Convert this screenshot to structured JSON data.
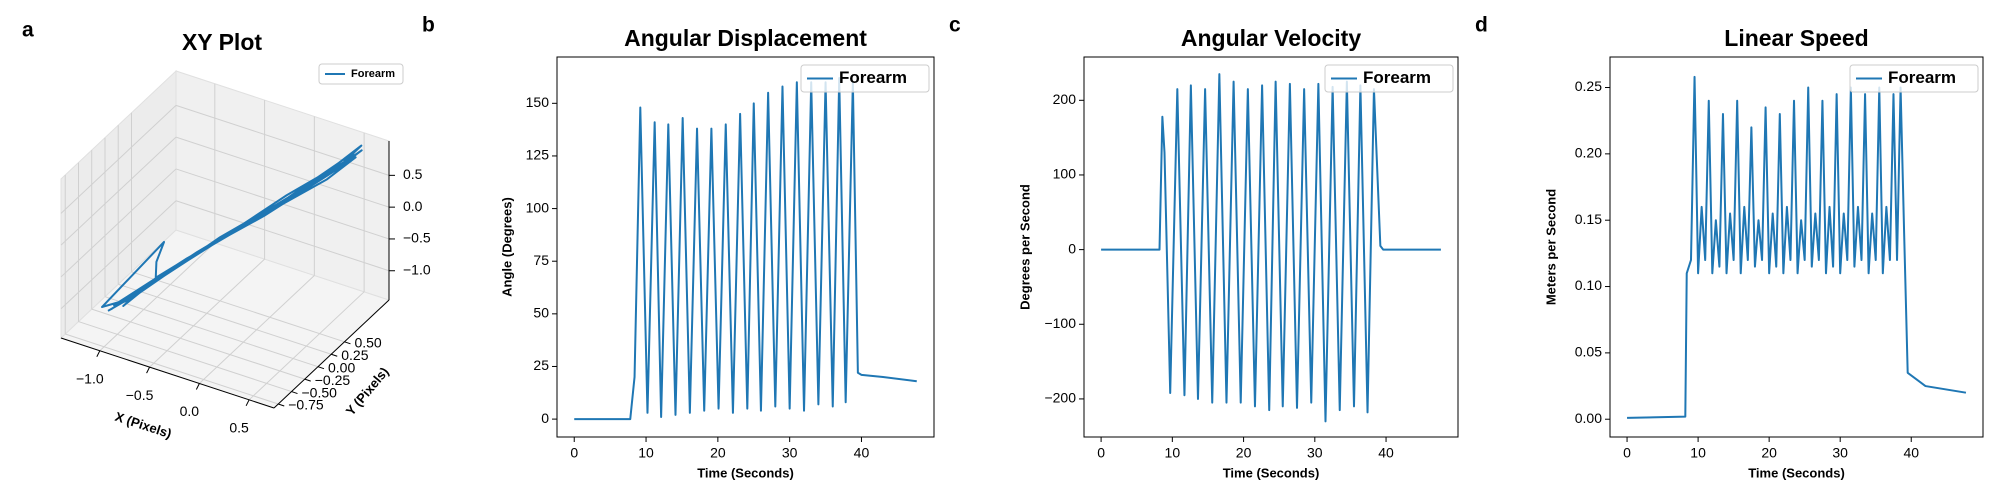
{
  "chart_data": [
    {
      "type": "line3d",
      "panel_label": "a",
      "title": "XY Plot",
      "xlabel": "X (Pixels)",
      "ylabel": "Y (Pixels)",
      "xlim": [
        -1.39,
        0.75
      ],
      "ylim": [
        -0.83,
        1.34
      ],
      "zlim": [
        -1.46,
        1.04
      ],
      "xticks": [
        {
          "value": -1.0,
          "label": "−1.0"
        },
        {
          "value": -0.5,
          "label": "−0.5"
        },
        {
          "value": 0,
          "label": "0.0"
        },
        0.5
      ],
      "yticks": [
        {
          "value": -0.75,
          "label": "−0.75"
        },
        {
          "value": -0.5,
          "label": "−0.50"
        },
        {
          "value": -0.25,
          "label": "−0.25"
        },
        {
          "value": 0,
          "label": "0.00"
        },
        0.25,
        {
          "value": 0.5,
          "label": "0.50"
        }
      ],
      "zticks": [
        {
          "value": -1.0,
          "label": "−1.0"
        },
        {
          "value": -0.5,
          "label": "−0.5"
        },
        {
          "value": 0,
          "label": "0.0"
        },
        0.5
      ],
      "grid": true,
      "legend": "upper right",
      "series": [
        {
          "name": "Forearm",
          "color": "#1f77b4",
          "x": [
            -1.2,
            -1.02,
            -1.15,
            -0.66,
            -0.12,
            0.37,
            0.55,
            0.3,
            -0.3,
            -0.86,
            -1.1,
            -0.95,
            -0.5,
            0.02,
            0.48,
            0.5,
            0.0,
            -0.42,
            -1.05,
            -1.25,
            -0.85,
            -0.9,
            -0.88,
            -0.22,
            0.2,
            0.52,
            0.4,
            -0.15,
            -0.7,
            -1.08,
            -1.0,
            -0.32,
            0.32,
            0.5,
            0.1,
            -0.6,
            -1.18
          ],
          "y": [
            -0.3,
            -0.12,
            -0.28,
            0.18,
            0.62,
            1.02,
            1.2,
            0.95,
            0.42,
            0.02,
            -0.2,
            -0.05,
            0.32,
            0.78,
            1.12,
            1.15,
            0.72,
            0.35,
            -0.15,
            -0.32,
            0.1,
            0.05,
            0.0,
            0.55,
            0.9,
            1.25,
            1.05,
            0.6,
            0.12,
            -0.2,
            -0.1,
            0.45,
            0.98,
            1.18,
            0.82,
            0.25,
            -0.28
          ],
          "z": [
            -1.35,
            -1.15,
            -1.25,
            -0.62,
            -0.02,
            0.62,
            0.9,
            0.55,
            -0.2,
            -0.88,
            -1.3,
            -1.05,
            -0.45,
            0.25,
            0.8,
            0.88,
            0.18,
            -0.3,
            -1.2,
            -1.3,
            -0.4,
            -0.7,
            -0.9,
            -0.08,
            0.42,
            0.92,
            0.68,
            0.0,
            -0.7,
            -1.22,
            -1.1,
            -0.22,
            0.5,
            0.78,
            0.3,
            -0.55,
            -1.33
          ]
        }
      ]
    },
    {
      "type": "line",
      "panel_label": "b",
      "title": "Angular Displacement",
      "xlabel": "Time (Seconds)",
      "ylabel": "Angle (Degrees)",
      "xlim": [
        -2.4,
        50.1
      ],
      "ylim": [
        -8.5,
        172
      ],
      "xticks": [
        0,
        10,
        20,
        30,
        40
      ],
      "yticks": [
        0,
        25,
        50,
        75,
        100,
        125,
        150
      ],
      "grid": false,
      "legend": "upper right",
      "x": [
        0,
        7.8,
        8.4,
        9.2,
        10.2,
        11.2,
        12.1,
        13.1,
        14.1,
        15.1,
        16.1,
        17.1,
        18.1,
        19.1,
        20.1,
        21.1,
        22.1,
        23.1,
        24.1,
        25,
        26,
        27,
        28,
        29,
        30,
        31,
        32,
        33,
        34,
        35,
        36,
        36.9,
        37.8,
        38.8,
        39.5,
        40,
        43,
        47.7
      ],
      "series": [
        {
          "name": "Forearm",
          "color": "#1f77b4",
          "values": [
            0,
            0,
            20,
            148,
            3,
            141,
            1,
            140,
            2,
            143,
            3,
            138,
            4,
            138,
            5,
            140,
            3,
            145,
            5,
            150,
            4,
            155,
            6,
            158,
            5,
            160,
            4,
            160,
            7,
            160,
            6,
            162,
            8,
            160,
            22,
            21,
            20,
            18
          ]
        }
      ]
    },
    {
      "type": "line",
      "panel_label": "c",
      "title": "Angular Velocity",
      "xlabel": "Time (Seconds)",
      "ylabel": "Degrees per Second",
      "xlim": [
        -2.4,
        50.1
      ],
      "ylim": [
        -251,
        258
      ],
      "xticks": [
        0,
        10,
        20,
        30,
        40
      ],
      "yticks": [
        {
          "value": -200,
          "label": "−200"
        },
        {
          "value": -100,
          "label": "−100"
        },
        0,
        100,
        200
      ],
      "grid": false,
      "legend": "upper right",
      "x": [
        0,
        8.2,
        8.6,
        8.9,
        9.7,
        10.7,
        11.7,
        12.6,
        13.6,
        14.6,
        15.6,
        16.6,
        17.6,
        18.6,
        19.6,
        20.6,
        21.6,
        22.6,
        23.6,
        24.5,
        25.5,
        26.5,
        27.5,
        28.5,
        29.5,
        30.5,
        31.5,
        32.5,
        33.5,
        34.5,
        35.5,
        36.4,
        37.4,
        38.3,
        39.2,
        39.6,
        47.7
      ],
      "series": [
        {
          "name": "Forearm",
          "color": "#1f77b4",
          "values": [
            0,
            0,
            178,
            130,
            -192,
            215,
            -195,
            220,
            -200,
            215,
            -205,
            235,
            -205,
            225,
            -205,
            215,
            -210,
            220,
            -215,
            225,
            -210,
            222,
            -212,
            215,
            -205,
            222,
            -230,
            218,
            -215,
            225,
            -210,
            220,
            -218,
            215,
            5,
            0,
            0
          ]
        }
      ]
    },
    {
      "type": "line",
      "panel_label": "d",
      "title": "Linear Speed",
      "xlabel": "Time (Seconds)",
      "ylabel": "Meters per Second",
      "xlim": [
        -2.4,
        50.1
      ],
      "ylim": [
        -0.0134,
        0.273
      ],
      "xticks": [
        0,
        10,
        20,
        30,
        40
      ],
      "yticks": [
        {
          "value": 0,
          "label": "0.00"
        },
        0.05,
        {
          "value": 0.1,
          "label": "0.10"
        },
        0.15,
        {
          "value": 0.2,
          "label": "0.20"
        },
        0.25
      ],
      "grid": false,
      "legend": "upper right",
      "x": [
        0,
        8.2,
        8.4,
        9,
        9.5,
        10,
        10.5,
        11,
        11.5,
        12,
        12.5,
        13,
        13.5,
        14,
        14.5,
        15,
        15.5,
        16,
        16.5,
        17,
        17.5,
        18,
        18.5,
        19,
        19.5,
        20,
        20.5,
        21,
        21.5,
        22,
        22.5,
        23,
        23.5,
        24,
        24.5,
        25,
        25.5,
        26,
        26.5,
        27,
        27.5,
        28,
        28.5,
        29,
        29.5,
        30,
        30.5,
        31,
        31.5,
        32,
        32.5,
        33,
        33.5,
        34,
        34.5,
        35,
        35.5,
        36,
        36.5,
        37,
        37.5,
        38,
        38.5,
        39,
        39.5,
        42,
        47.7
      ],
      "series": [
        {
          "name": "Forearm",
          "color": "#1f77b4",
          "values": [
            0.001,
            0.002,
            0.11,
            0.12,
            0.258,
            0.11,
            0.16,
            0.12,
            0.24,
            0.11,
            0.15,
            0.115,
            0.23,
            0.11,
            0.155,
            0.12,
            0.24,
            0.11,
            0.16,
            0.12,
            0.22,
            0.115,
            0.15,
            0.12,
            0.235,
            0.11,
            0.155,
            0.115,
            0.23,
            0.11,
            0.16,
            0.12,
            0.24,
            0.11,
            0.15,
            0.12,
            0.25,
            0.115,
            0.155,
            0.12,
            0.24,
            0.11,
            0.16,
            0.115,
            0.245,
            0.11,
            0.155,
            0.12,
            0.25,
            0.115,
            0.16,
            0.12,
            0.245,
            0.11,
            0.155,
            0.12,
            0.25,
            0.11,
            0.16,
            0.12,
            0.245,
            0.12,
            0.25,
            0.14,
            0.035,
            0.025,
            0.02
          ]
        }
      ]
    }
  ]
}
